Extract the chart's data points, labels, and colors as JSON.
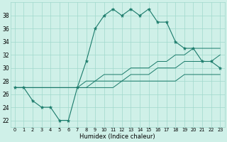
{
  "xlabel": "Humidex (Indice chaleur)",
  "bg_color": "#cff0e8",
  "grid_color": "#a0d8cc",
  "line_color": "#1a7a6a",
  "hours": [
    0,
    1,
    2,
    3,
    4,
    5,
    6,
    7,
    8,
    9,
    10,
    11,
    12,
    13,
    14,
    15,
    16,
    17,
    18,
    19,
    20,
    21,
    22,
    23
  ],
  "humidex_main": [
    27,
    27,
    25,
    24,
    24,
    22,
    22,
    27,
    31,
    36,
    38,
    39,
    38,
    39,
    38,
    39,
    37,
    37,
    34,
    33,
    33,
    31,
    31,
    30
  ],
  "humidex_line1": [
    27,
    27,
    27,
    27,
    27,
    27,
    27,
    27,
    27,
    27,
    27,
    27,
    28,
    28,
    28,
    28,
    28,
    28,
    28,
    29,
    29,
    29,
    29,
    29
  ],
  "humidex_line2": [
    27,
    27,
    27,
    27,
    27,
    27,
    27,
    27,
    27,
    28,
    28,
    28,
    28,
    29,
    29,
    29,
    30,
    30,
    30,
    31,
    31,
    31,
    31,
    32
  ],
  "humidex_line3": [
    27,
    27,
    27,
    27,
    27,
    27,
    27,
    27,
    28,
    28,
    29,
    29,
    29,
    30,
    30,
    30,
    31,
    31,
    32,
    32,
    33,
    33,
    33,
    33
  ],
  "ylim": [
    21,
    40
  ],
  "yticks": [
    22,
    24,
    26,
    28,
    30,
    32,
    34,
    36,
    38
  ],
  "xlim": [
    -0.5,
    23.5
  ]
}
